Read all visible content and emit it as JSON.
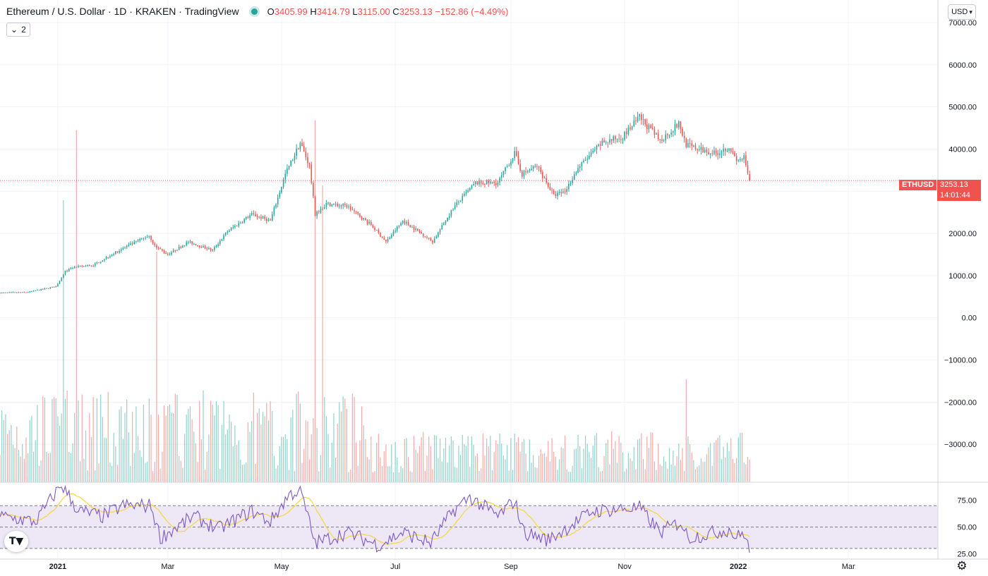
{
  "header": {
    "title": "Ethereum / U.S. Dollar · 1D · KRAKEN · TradingView",
    "ohlc": {
      "o_label": "O",
      "o_value": "3405.99",
      "h_label": "H",
      "h_value": "3414.79",
      "l_label": "L",
      "l_value": "3115.00",
      "c_label": "C",
      "c_value": "3253.13",
      "change": "−152.86 (−4.49%)"
    },
    "indicators_count": "2"
  },
  "toolbar": {
    "currency": "USD"
  },
  "last_price": {
    "symbol": "ETHUSD",
    "price": "3253.13",
    "countdown": "14:01:44"
  },
  "colors": {
    "up": "#26a69a",
    "down": "#ef5350",
    "rsi": "#7e57c2",
    "rsi_ma": "#f5d840",
    "rsi_band": "#ede7f6"
  },
  "chart_data": [
    {
      "type": "candlestick",
      "title": "Ethereum / U.S. Dollar · 1D · KRAKEN · TradingView",
      "y_ticks": [
        "7000.00",
        "6000.00",
        "5000.00",
        "4000.00",
        "3000.00",
        "2000.00",
        "1000.00",
        "0.00",
        "−1000.00",
        "−2000.00",
        "−3000.00"
      ],
      "ylim": [
        -3900,
        7400
      ],
      "x_ticks": [
        "2021",
        "Mar",
        "May",
        "Jul",
        "Sep",
        "Nov",
        "2022",
        "Mar"
      ],
      "x_tick_dates": [
        "2021-01-01",
        "2021-03-01",
        "2021-05-01",
        "2021-07-01",
        "2021-09-01",
        "2021-11-01",
        "2022-01-01",
        "2022-03-01"
      ],
      "x_range": [
        "2020-12-01",
        "2022-04-18"
      ],
      "grid": true,
      "close_anchors": [
        [
          "2020-12-01",
          590
        ],
        [
          "2020-12-15",
          600
        ],
        [
          "2020-12-31",
          740
        ],
        [
          "2021-01-05",
          1100
        ],
        [
          "2021-01-10",
          1200
        ],
        [
          "2021-01-20",
          1250
        ],
        [
          "2021-02-05",
          1650
        ],
        [
          "2021-02-19",
          1950
        ],
        [
          "2021-02-22",
          1700
        ],
        [
          "2021-03-01",
          1500
        ],
        [
          "2021-03-12",
          1800
        ],
        [
          "2021-03-25",
          1600
        ],
        [
          "2021-04-02",
          2050
        ],
        [
          "2021-04-15",
          2450
        ],
        [
          "2021-04-25",
          2300
        ],
        [
          "2021-05-03",
          3400
        ],
        [
          "2021-05-11",
          4150
        ],
        [
          "2021-05-16",
          3600
        ],
        [
          "2021-05-19",
          2450
        ],
        [
          "2021-05-25",
          2700
        ],
        [
          "2021-06-05",
          2650
        ],
        [
          "2021-06-18",
          2200
        ],
        [
          "2021-06-26",
          1800
        ],
        [
          "2021-07-05",
          2300
        ],
        [
          "2021-07-15",
          2000
        ],
        [
          "2021-07-21",
          1800
        ],
        [
          "2021-08-01",
          2600
        ],
        [
          "2021-08-13",
          3200
        ],
        [
          "2021-08-25",
          3200
        ],
        [
          "2021-09-03",
          3900
        ],
        [
          "2021-09-07",
          3400
        ],
        [
          "2021-09-15",
          3600
        ],
        [
          "2021-09-24",
          2900
        ],
        [
          "2021-09-30",
          3000
        ],
        [
          "2021-10-07",
          3550
        ],
        [
          "2021-10-20",
          4150
        ],
        [
          "2021-10-31",
          4300
        ],
        [
          "2021-11-09",
          4750
        ],
        [
          "2021-11-20",
          4200
        ],
        [
          "2021-11-30",
          4600
        ],
        [
          "2021-12-04",
          4100
        ],
        [
          "2021-12-10",
          4000
        ],
        [
          "2021-12-20",
          3900
        ],
        [
          "2021-12-27",
          4050
        ],
        [
          "2021-12-31",
          3700
        ],
        [
          "2022-01-04",
          3800
        ],
        [
          "2022-01-06",
          3405
        ],
        [
          "2022-01-07",
          3253
        ]
      ],
      "volume": {
        "note": "volume histogram drawn under price, colored by candle direction",
        "spikes": [
          [
            "2021-01-04",
            2300
          ],
          [
            "2021-01-11",
            2870
          ],
          [
            "2021-02-23",
            1880
          ],
          [
            "2021-05-19",
            2950
          ],
          [
            "2021-05-23",
            2420
          ],
          [
            "2021-12-04",
            840
          ]
        ]
      },
      "last_price_line": 3253.13
    },
    {
      "type": "line",
      "title": "",
      "series": [
        {
          "name": "",
          "anchors": [
            [
              "2020-12-01",
              60
            ],
            [
              "2020-12-20",
              55
            ],
            [
              "2021-01-03",
              90
            ],
            [
              "2021-01-12",
              65
            ],
            [
              "2021-01-25",
              60
            ],
            [
              "2021-02-05",
              70
            ],
            [
              "2021-02-20",
              70
            ],
            [
              "2021-02-25",
              40
            ],
            [
              "2021-03-15",
              60
            ],
            [
              "2021-03-28",
              48
            ],
            [
              "2021-04-15",
              65
            ],
            [
              "2021-04-25",
              55
            ],
            [
              "2021-05-05",
              80
            ],
            [
              "2021-05-11",
              85
            ],
            [
              "2021-05-19",
              35
            ],
            [
              "2021-06-05",
              45
            ],
            [
              "2021-06-22",
              33
            ],
            [
              "2021-07-05",
              45
            ],
            [
              "2021-07-20",
              35
            ],
            [
              "2021-08-01",
              65
            ],
            [
              "2021-08-10",
              78
            ],
            [
              "2021-08-25",
              60
            ],
            [
              "2021-09-03",
              75
            ],
            [
              "2021-09-08",
              45
            ],
            [
              "2021-09-21",
              38
            ],
            [
              "2021-09-30",
              48
            ],
            [
              "2021-10-15",
              65
            ],
            [
              "2021-10-31",
              67
            ],
            [
              "2021-11-09",
              68
            ],
            [
              "2021-11-20",
              45
            ],
            [
              "2021-12-01",
              55
            ],
            [
              "2021-12-05",
              40
            ],
            [
              "2021-12-20",
              45
            ],
            [
              "2021-12-27",
              48
            ],
            [
              "2021-12-31",
              40
            ],
            [
              "2022-01-04",
              45
            ],
            [
              "2022-01-07",
              28
            ]
          ]
        }
      ],
      "ma_series": {
        "name": "",
        "smoothing": 14
      },
      "y_ticks": [
        "75.00",
        "50.00",
        "25.00"
      ],
      "ylim": [
        22,
        88
      ],
      "bands": [
        30,
        50,
        70
      ]
    }
  ]
}
